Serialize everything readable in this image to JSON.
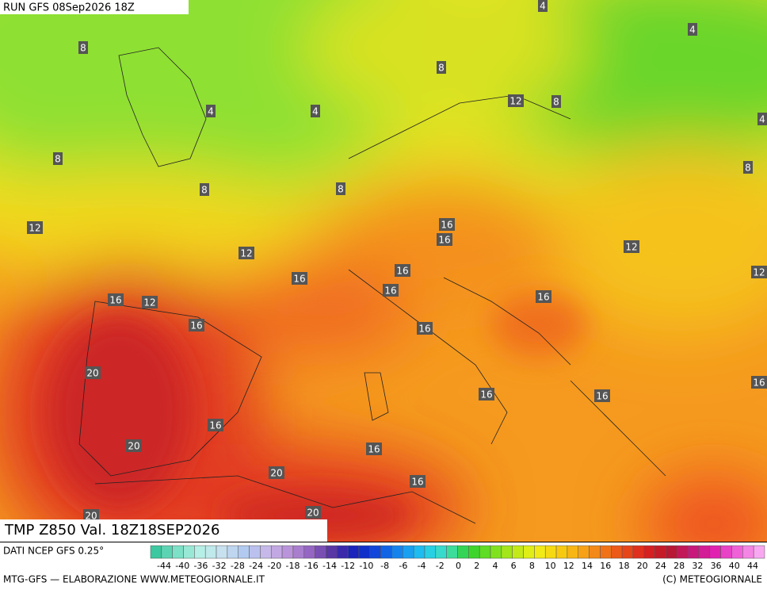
{
  "header": {
    "run": "RUN GFS 08Sep2026 18Z",
    "title": "TMP Z850 Val. 18Z18SEP2026"
  },
  "contour_labels": [
    4,
    4,
    8,
    8,
    4,
    4,
    12,
    8,
    4,
    8,
    8,
    8,
    8,
    12,
    16,
    16,
    12,
    12,
    16,
    16,
    12,
    16,
    16,
    12,
    16,
    16,
    16,
    20,
    16,
    16,
    16,
    16,
    20,
    16,
    20,
    16,
    20,
    20
  ],
  "footer": {
    "source": "DATI NCEP GFS 0.25°",
    "credits": "MTG-GFS — ELABORAZIONE WWW.METEOGIORNALE.IT",
    "copyright": "(C) METEOGIORNALE"
  },
  "scale": {
    "labels": [
      -44,
      -40,
      -36,
      -32,
      -28,
      -24,
      -20,
      -18,
      -16,
      -14,
      -12,
      -10,
      -8,
      -6,
      -4,
      -2,
      0,
      2,
      4,
      6,
      8,
      10,
      12,
      14,
      16,
      18,
      20,
      24,
      28,
      32,
      36,
      40,
      44
    ]
  }
}
